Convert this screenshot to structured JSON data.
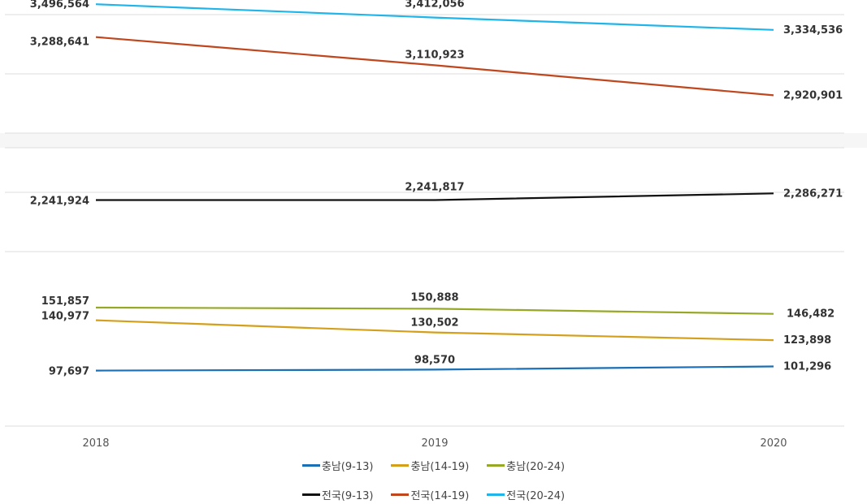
{
  "chart_data": {
    "type": "line",
    "x": [
      "2018",
      "2019",
      "2020"
    ],
    "y_axis_break": true,
    "series": [
      {
        "name": "충남(9-13)",
        "color": "#1a6fb5",
        "values": [
          97697,
          98570,
          101296
        ],
        "labels": [
          "97,697",
          "98,570",
          "101,296"
        ]
      },
      {
        "name": "충남(14-19)",
        "color": "#d4a01c",
        "values": [
          140977,
          130502,
          123898
        ],
        "labels": [
          "140,977",
          "130,502",
          "123,898"
        ]
      },
      {
        "name": "충남(20-24)",
        "color": "#97a826",
        "values": [
          151857,
          150888,
          146482
        ],
        "labels": [
          "151,857",
          "150,888",
          "146,482"
        ]
      },
      {
        "name": "전국(9-13)",
        "color": "#111111",
        "values": [
          2241924,
          2241817,
          2286271
        ],
        "labels": [
          "2,241,924",
          "2,241,817",
          "2,286,271"
        ]
      },
      {
        "name": "전국(14-19)",
        "color": "#c0461d",
        "values": [
          3288641,
          3110923,
          2920901
        ],
        "labels": [
          "3,288,641",
          "3,110,923",
          "2,920,901"
        ]
      },
      {
        "name": "전국(20-24)",
        "color": "#1fb5ea",
        "values": [
          3496564,
          3412056,
          3334536
        ],
        "labels": [
          "3,496,564",
          "3,412,056",
          "3,334,536"
        ]
      }
    ],
    "legend": {
      "rows": [
        [
          "충남(9-13)",
          "충남(14-19)",
          "충남(20-24)"
        ],
        [
          "전국(9-13)",
          "전국(14-19)",
          "전국(20-24)"
        ]
      ],
      "position": "bottom"
    },
    "grid": true
  }
}
